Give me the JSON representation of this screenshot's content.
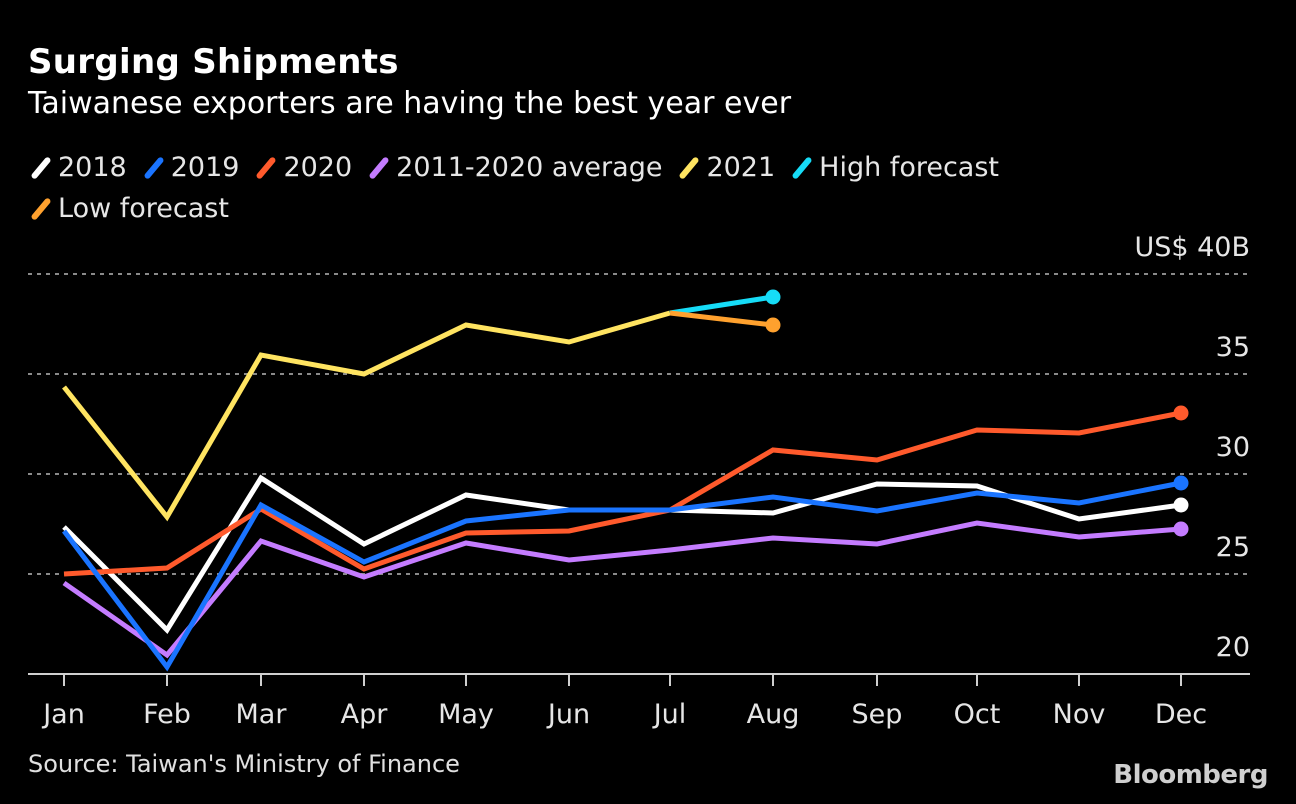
{
  "title": "Surging Shipments",
  "subtitle": "Taiwanese exporters are having the best year ever",
  "source": "Source: Taiwan's Ministry of Finance",
  "logo": "Bloomberg",
  "chart_data": {
    "type": "line",
    "title": "Surging Shipments",
    "subtitle": "Taiwanese exporters are having the best year ever",
    "categories": [
      "Jan",
      "Feb",
      "Mar",
      "Apr",
      "May",
      "Jun",
      "Jul",
      "Aug",
      "Sep",
      "Oct",
      "Nov",
      "Dec"
    ],
    "ylim": [
      20,
      40
    ],
    "yticks": [
      20,
      25,
      30,
      35,
      40
    ],
    "ytick_labels": [
      "20",
      "25",
      "30",
      "35",
      "US$ 40B"
    ],
    "grid": true,
    "legend_position": "top-left",
    "series": [
      {
        "name": "2018",
        "color": "#ffffff",
        "values": [
          27.35,
          22.2,
          29.8,
          26.5,
          28.95,
          28.2,
          28.2,
          28.05,
          29.5,
          29.4,
          27.75,
          28.45
        ]
      },
      {
        "name": "2019",
        "color": "#1a74ff",
        "values": [
          27.15,
          20.35,
          28.45,
          25.6,
          27.65,
          28.2,
          28.2,
          28.85,
          28.15,
          29.05,
          28.55,
          29.55
        ]
      },
      {
        "name": "2020",
        "color": "#ff5a2c",
        "values": [
          25.0,
          25.3,
          28.25,
          25.25,
          27.05,
          27.15,
          28.2,
          31.2,
          30.7,
          32.2,
          32.05,
          33.05
        ]
      },
      {
        "name": "2011-2020 average",
        "color": "#c47cff",
        "values": [
          24.55,
          20.95,
          26.65,
          24.85,
          26.55,
          25.7,
          26.2,
          26.8,
          26.5,
          27.55,
          26.85,
          27.25
        ]
      },
      {
        "name": "2021",
        "color": "#ffe461",
        "values": [
          34.35,
          27.85,
          35.95,
          35.0,
          37.45,
          36.6,
          38.05,
          null,
          null,
          null,
          null,
          null
        ]
      },
      {
        "name": "High forecast",
        "color": "#16dcf7",
        "values": [
          null,
          null,
          null,
          null,
          null,
          null,
          38.05,
          38.85,
          null,
          null,
          null,
          null
        ]
      },
      {
        "name": "Low forecast",
        "color": "#ffa12e",
        "values": [
          null,
          null,
          null,
          null,
          null,
          null,
          38.05,
          37.45,
          null,
          null,
          null,
          null
        ]
      }
    ]
  }
}
